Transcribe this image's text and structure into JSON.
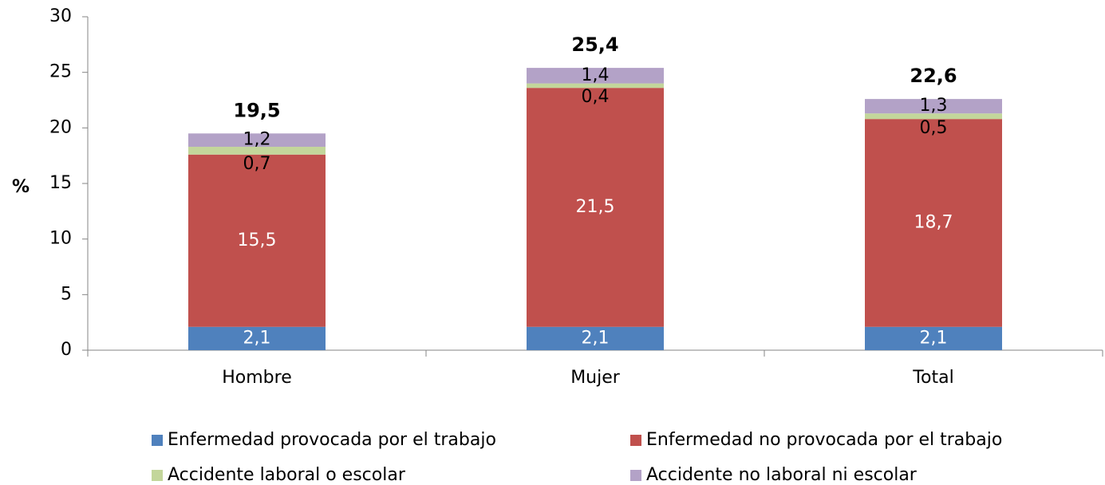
{
  "chart_data": {
    "type": "stacked_bar",
    "y_label": "%",
    "categories": [
      "Hombre",
      "Mujer",
      "Total"
    ],
    "series": [
      {
        "name": "Enfermedad provocada por el trabajo",
        "color": "#4f81bd",
        "label_color": "#ffffff",
        "values": [
          2.1,
          2.1,
          2.1
        ],
        "value_labels": [
          "2,1",
          "2,1",
          "2,1"
        ]
      },
      {
        "name": "Enfermedad no provocada por el trabajo",
        "color": "#c0504d",
        "label_color": "#ffffff",
        "values": [
          15.5,
          21.5,
          18.7
        ],
        "value_labels": [
          "15,5",
          "21,5",
          "18,7"
        ]
      },
      {
        "name": "Accidente laboral o escolar",
        "color": "#c3d69b",
        "label_color": "#000000",
        "values": [
          0.7,
          0.4,
          0.5
        ],
        "value_labels": [
          "0,7",
          "0,4",
          "0,5"
        ]
      },
      {
        "name": "Accidente no laboral ni escolar",
        "color": "#b3a2c7",
        "label_color": "#000000",
        "values": [
          1.2,
          1.4,
          1.3
        ],
        "value_labels": [
          "1,2",
          "1,4",
          "1,3"
        ]
      }
    ],
    "totals": [
      19.5,
      25.4,
      22.6
    ],
    "total_labels": [
      "19,5",
      "25,4",
      "22,6"
    ],
    "ylim": [
      0,
      30
    ],
    "yticks": [
      0,
      5,
      10,
      15,
      20,
      25,
      30
    ]
  }
}
